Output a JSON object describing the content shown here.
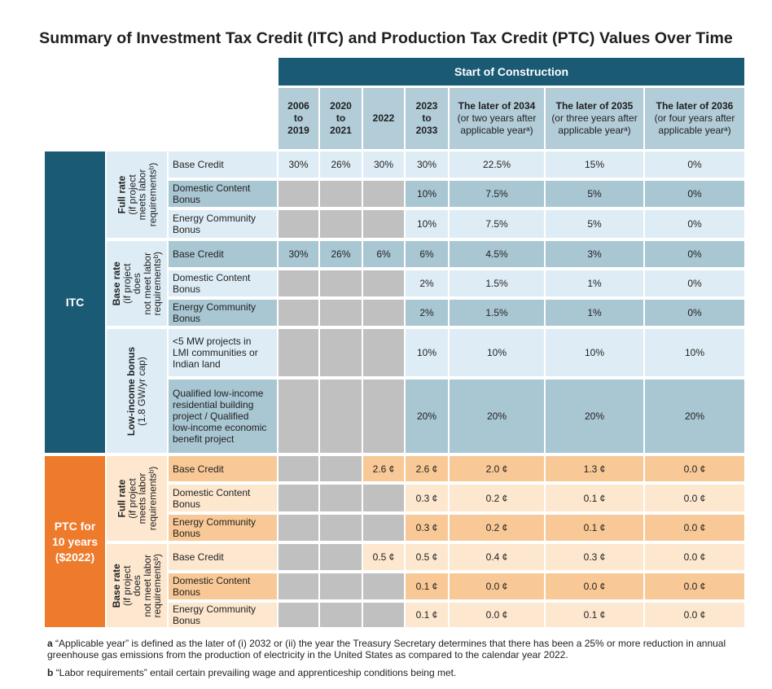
{
  "title": "Summary of Investment Tax Credit (ITC) and Production Tax Credit (PTC) Values Over Time",
  "header_band": "Start of Construction",
  "columns": [
    {
      "main": "2006\nto\n2019",
      "sub": ""
    },
    {
      "main": "2020\nto\n2021",
      "sub": ""
    },
    {
      "main": "2022",
      "sub": ""
    },
    {
      "main": "2023\nto\n2033",
      "sub": ""
    },
    {
      "main": "The later of 2034",
      "sub": "(or two years after\napplicable yearᵃ)"
    },
    {
      "main": "The later of 2035",
      "sub": "(or three years after\napplicable yearᵃ)"
    },
    {
      "main": "The later of 2036",
      "sub": "(or four years after\napplicable yearᵃ)"
    }
  ],
  "sections": [
    {
      "label": "ITC",
      "groups": [
        {
          "title": "Full rate",
          "subtitle": "(if project\nmeets labor\nrequirementsᵇ)",
          "rows": [
            {
              "label": "Base Credit",
              "values": [
                "30%",
                "26%",
                "30%",
                "30%",
                "22.5%",
                "15%",
                "0%"
              ]
            },
            {
              "label": "Domestic Content\nBonus",
              "values": [
                null,
                null,
                null,
                "10%",
                "7.5%",
                "5%",
                "0%"
              ]
            },
            {
              "label": "Energy Community\nBonus",
              "values": [
                null,
                null,
                null,
                "10%",
                "7.5%",
                "5%",
                "0%"
              ]
            }
          ]
        },
        {
          "title": "Base rate",
          "subtitle": "(if project does\nnot meet labor\nrequirementsᵇ)",
          "rows": [
            {
              "label": "Base Credit",
              "values": [
                "30%",
                "26%",
                "6%",
                "6%",
                "4.5%",
                "3%",
                "0%"
              ]
            },
            {
              "label": "Domestic Content\nBonus",
              "values": [
                null,
                null,
                null,
                "2%",
                "1.5%",
                "1%",
                "0%"
              ]
            },
            {
              "label": "Energy Community\nBonus",
              "values": [
                null,
                null,
                null,
                "2%",
                "1.5%",
                "1%",
                "0%"
              ]
            }
          ]
        },
        {
          "title": "Low-income bonus",
          "subtitle": "(1.8 GW/yr cap)",
          "rows": [
            {
              "label": "<5 MW projects in\nLMI communities or\nIndian land",
              "values": [
                null,
                null,
                null,
                "10%",
                "10%",
                "10%",
                "10%"
              ]
            },
            {
              "label": "Qualified low-income\nresidential building\nproject / Qualified\nlow-income economic\nbenefit project",
              "values": [
                null,
                null,
                null,
                "20%",
                "20%",
                "20%",
                "20%"
              ]
            }
          ]
        }
      ]
    },
    {
      "label": "PTC for\n10 years\n($2022)",
      "groups": [
        {
          "title": "Full rate",
          "subtitle": "(if project\nmeets labor\nrequirementsᵇ)",
          "rows": [
            {
              "label": "Base Credit",
              "values": [
                null,
                null,
                "2.6 ¢",
                "2.6 ¢",
                "2.0 ¢",
                "1.3 ¢",
                "0.0 ¢"
              ]
            },
            {
              "label": "Domestic Content\nBonus",
              "values": [
                null,
                null,
                null,
                "0.3 ¢",
                "0.2 ¢",
                "0.1 ¢",
                "0.0 ¢"
              ]
            },
            {
              "label": "Energy Community\nBonus",
              "values": [
                null,
                null,
                null,
                "0.3 ¢",
                "0.2 ¢",
                "0.1 ¢",
                "0.0 ¢"
              ]
            }
          ]
        },
        {
          "title": "Base rate",
          "subtitle": "(if project does\nnot meet labor\nrequirementsᵇ)",
          "rows": [
            {
              "label": "Base Credit",
              "values": [
                null,
                null,
                "0.5 ¢",
                "0.5 ¢",
                "0.4 ¢",
                "0.3 ¢",
                "0.0 ¢"
              ]
            },
            {
              "label": "Domestic Content\nBonus",
              "values": [
                null,
                null,
                null,
                "0.1 ¢",
                "0.0 ¢",
                "0.0 ¢",
                "0.0 ¢"
              ]
            },
            {
              "label": "Energy Community\nBonus",
              "values": [
                null,
                null,
                null,
                "0.1 ¢",
                "0.0 ¢",
                "0.1 ¢",
                "0.0 ¢"
              ]
            }
          ]
        }
      ]
    }
  ],
  "footnotes": [
    {
      "marker": "a",
      "text": "“Applicable year” is defined as the later of (i) 2032 or (ii) the year the Treasury Secretary determines that there has been a 25% or more reduction in annual greenhouse gas emissions from the production of electricity in the United States as compared to the calendar year 2022."
    },
    {
      "marker": "b",
      "text": "“Labor requirements” entail certain prevailing wage and apprenticeship conditions being met."
    }
  ],
  "colors": {
    "itc_dark": "#1b5a75",
    "ptc_orange": "#ee7a2b",
    "itc_row_light": "#deedf5",
    "itc_row_dark": "#a9c6d3",
    "ptc_row_light": "#fde7cf",
    "ptc_row_dark": "#f8c996",
    "na_gray": "#c0c0c0"
  }
}
